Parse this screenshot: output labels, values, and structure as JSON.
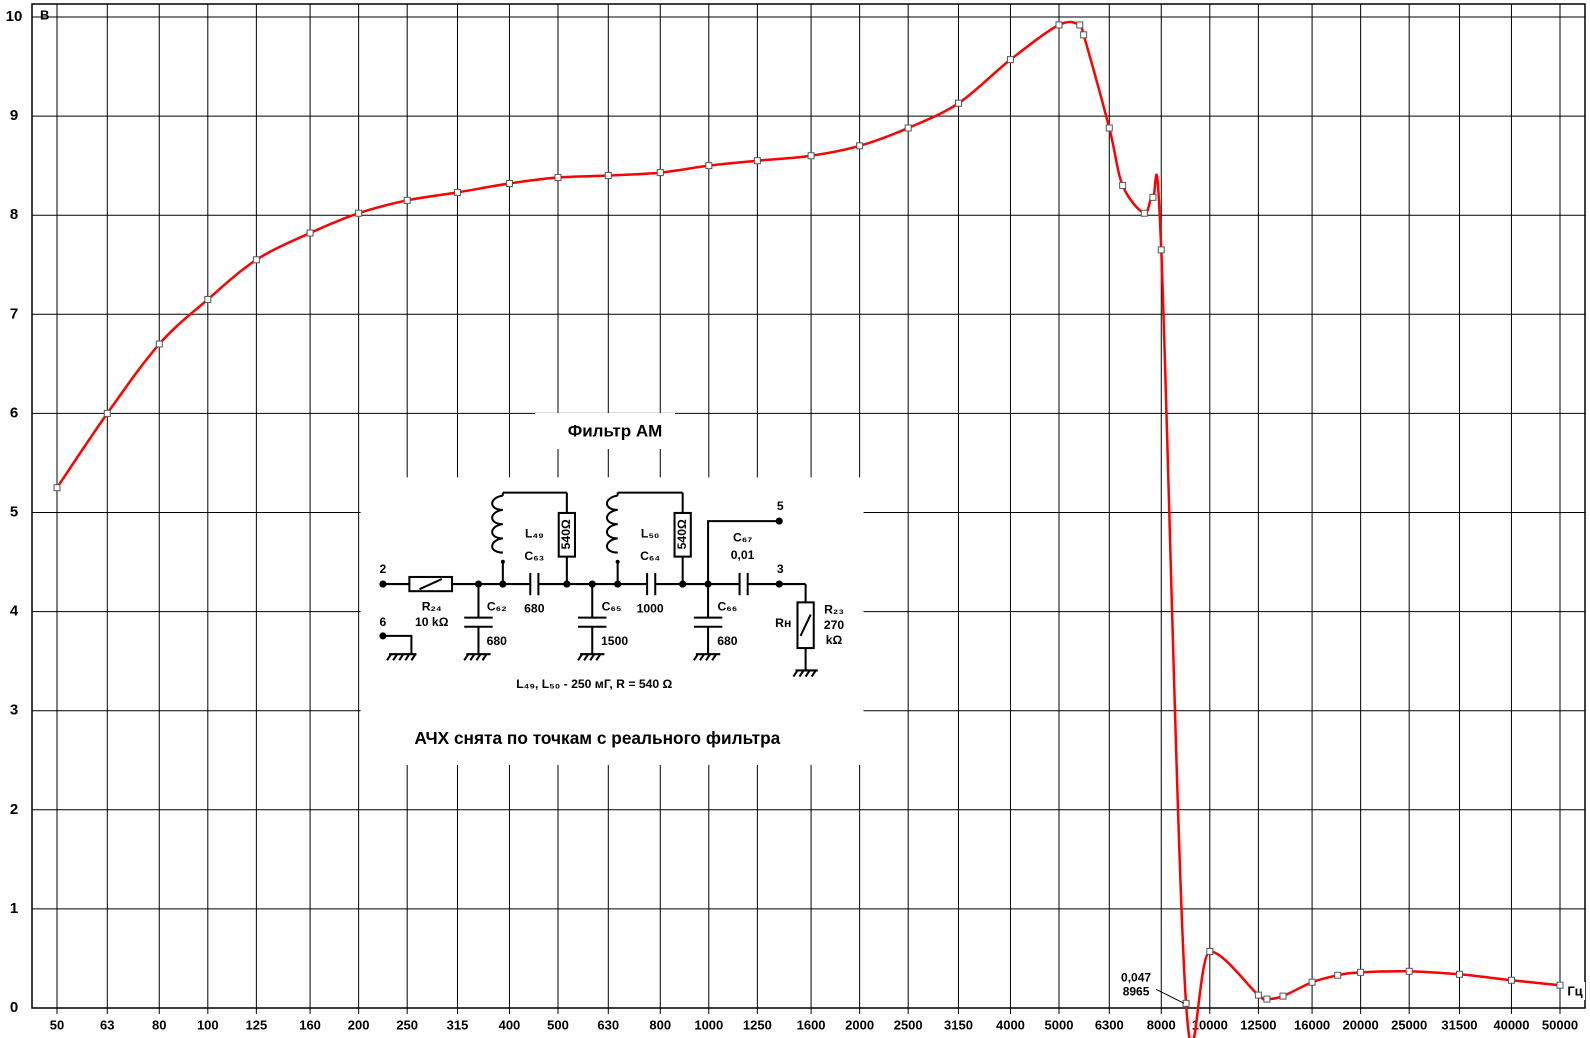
{
  "chart_data": {
    "type": "line",
    "title": "Фильтр  АМ",
    "subtitle": "АЧХ снята по точкам с реального фильтра",
    "y_label": "В",
    "x_label": "Гц",
    "x": [
      50,
      63,
      80,
      100,
      125,
      160,
      200,
      250,
      315,
      400,
      500,
      630,
      800,
      1000,
      1250,
      1600,
      2000,
      2500,
      3150,
      4000,
      5000,
      5500,
      5600,
      6300,
      6700,
      7400,
      7700,
      8000,
      8965,
      10000,
      12500,
      13000,
      14000,
      16000,
      18000,
      20000,
      25000,
      31500,
      40000,
      50000
    ],
    "values": [
      5.25,
      6.0,
      6.7,
      7.15,
      7.55,
      7.82,
      8.02,
      8.15,
      8.23,
      8.32,
      8.38,
      8.4,
      8.43,
      8.5,
      8.55,
      8.6,
      8.7,
      8.88,
      9.13,
      9.57,
      9.92,
      9.92,
      9.82,
      8.88,
      8.3,
      8.02,
      8.18,
      7.65,
      0.047,
      0.57,
      0.13,
      0.09,
      0.12,
      0.26,
      0.33,
      0.36,
      0.37,
      0.34,
      0.28,
      0.23
    ],
    "color": "#ff0000",
    "x_scale": "log",
    "grid": true,
    "xlim": [
      50,
      50000
    ],
    "xticks": [
      50,
      63,
      80,
      100,
      125,
      160,
      200,
      250,
      315,
      400,
      500,
      630,
      800,
      1000,
      1250,
      1600,
      2000,
      2500,
      3150,
      4000,
      5000,
      6300,
      8000,
      10000,
      12500,
      16000,
      20000,
      25000,
      31500,
      40000,
      50000
    ],
    "ylim": [
      0,
      10
    ],
    "yticks": [
      0,
      1,
      2,
      3,
      4,
      5,
      6,
      7,
      8,
      9,
      10
    ],
    "annotation": [
      "0,047",
      "8965"
    ]
  },
  "schematic": {
    "labels": [
      "2",
      "6",
      "R₂₄",
      "10 kΩ",
      "C₆₂",
      "680",
      "L₄₉",
      "540Ω",
      "C₆₃",
      "680",
      "C₆₅",
      "1500",
      "L₅₀",
      "540Ω",
      "C₆₄",
      "1000",
      "5",
      "C₆₇",
      "0,01",
      "3",
      "C₆₆",
      "680",
      "Rн",
      "R₂₃",
      "270",
      "kΩ",
      "L₄₉, L₅₀ - 250 мГ, R = 540 Ω"
    ]
  }
}
